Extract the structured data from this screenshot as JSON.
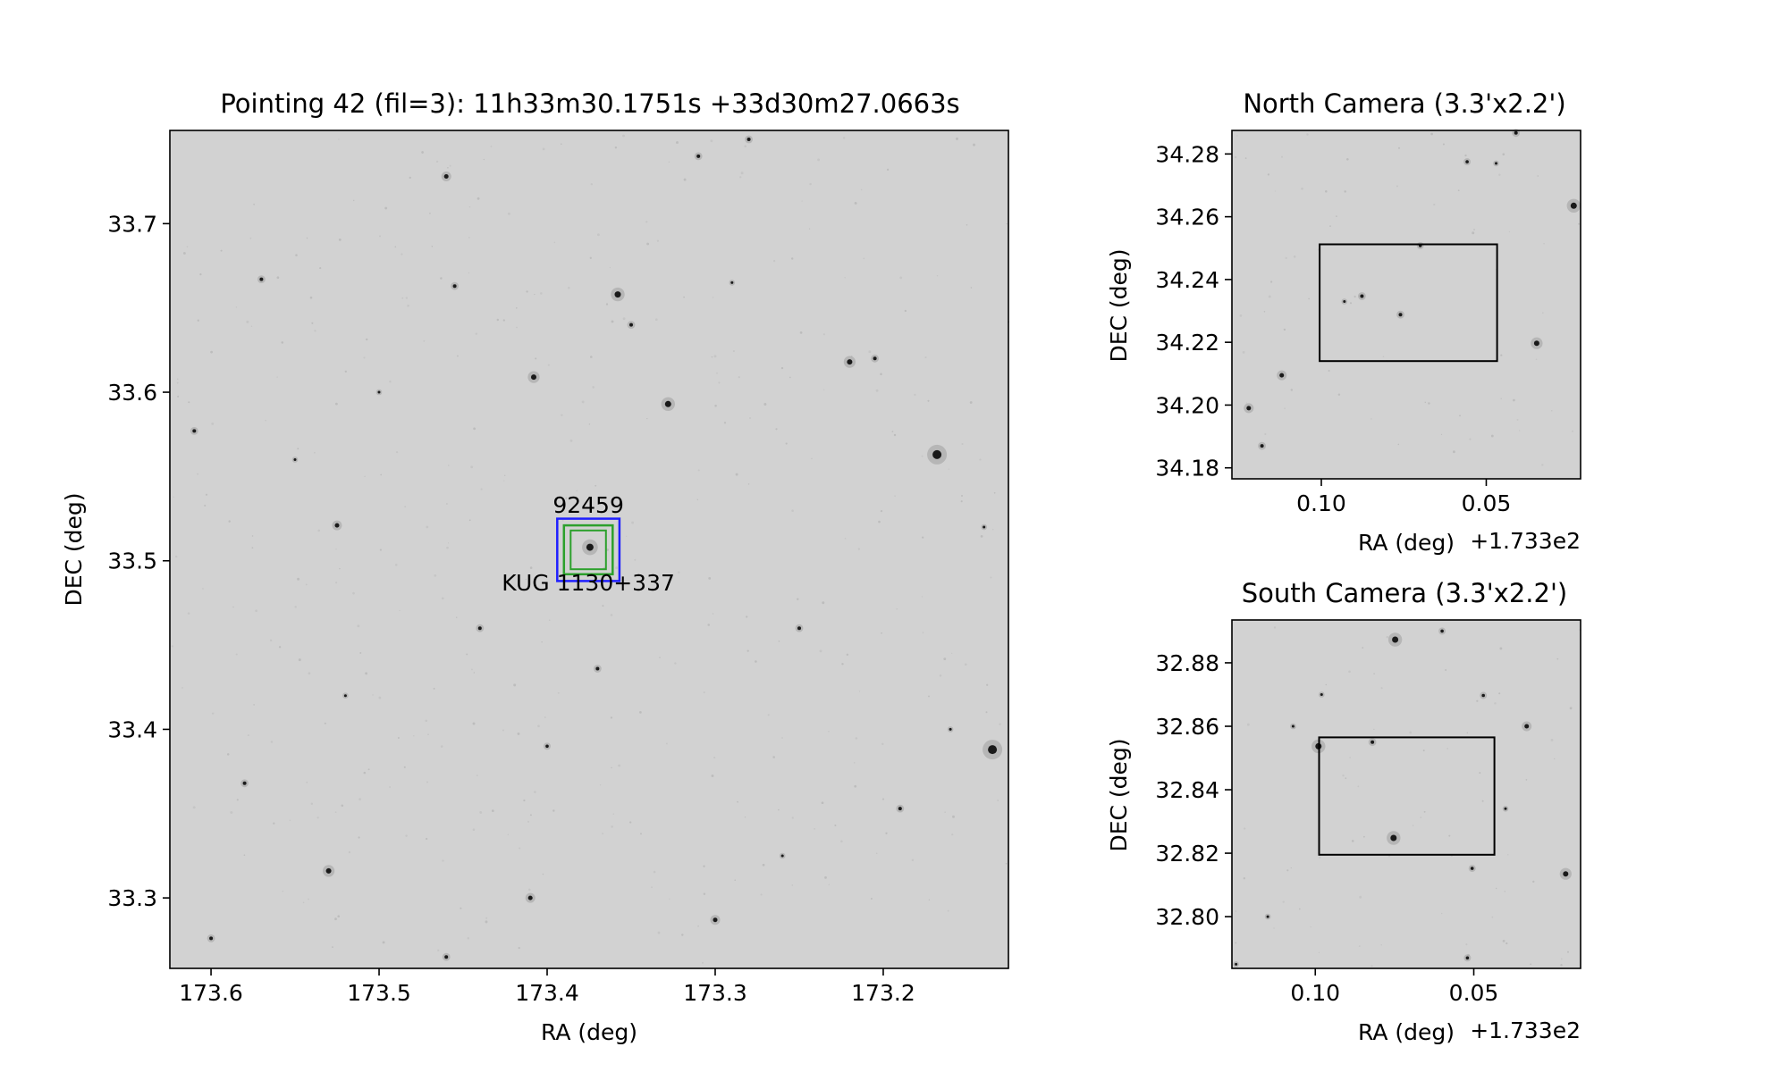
{
  "figure": {
    "background": "#ffffff",
    "image_gray": "#d2d2d2"
  },
  "chart_data": [
    {
      "type": "image",
      "id": "main",
      "title": "Pointing 42 (fil=3): 11h33m30.1751s +33d30m27.0663s",
      "xlabel": "RA (deg)",
      "ylabel": "DEC (deg)",
      "xlim": [
        173.6245,
        173.1255
      ],
      "ylim": [
        33.2582,
        33.7553
      ],
      "xticks": [
        173.6,
        173.5,
        173.4,
        173.3,
        173.2
      ],
      "xtick_labels": [
        "173.6",
        "173.5",
        "173.4",
        "173.3",
        "173.2"
      ],
      "yticks": [
        33.3,
        33.4,
        33.5,
        33.6,
        33.7
      ],
      "ytick_labels": [
        "33.3",
        "33.4",
        "33.5",
        "33.6",
        "33.7"
      ],
      "offset_text": "",
      "rectangles": [
        {
          "x0": 173.394,
          "x1": 173.357,
          "y0": 33.488,
          "y1": 33.525,
          "color": "#1f1fff",
          "width": 2.5
        },
        {
          "x0": 173.39,
          "x1": 173.361,
          "y0": 33.492,
          "y1": 33.521,
          "color": "#2ca02c",
          "width": 2.5
        },
        {
          "x0": 173.386,
          "x1": 173.365,
          "y0": 33.495,
          "y1": 33.518,
          "color": "#2ca02c",
          "width": 2
        }
      ],
      "annotations": [
        {
          "text": "92459",
          "x": 173.3755,
          "y": 33.5285
        },
        {
          "text": "KUG 1130+337",
          "x": 173.3755,
          "y": 33.4825
        }
      ],
      "sources": [
        {
          "x": 173.168,
          "y": 33.563,
          "r": 5
        },
        {
          "x": 173.135,
          "y": 33.388,
          "r": 5
        },
        {
          "x": 173.3745,
          "y": 33.508,
          "r": 4
        },
        {
          "x": 173.358,
          "y": 33.658,
          "r": 3.5
        },
        {
          "x": 173.328,
          "y": 33.593,
          "r": 3.5
        },
        {
          "x": 173.408,
          "y": 33.609,
          "r": 3
        },
        {
          "x": 173.53,
          "y": 33.316,
          "r": 3
        },
        {
          "x": 173.22,
          "y": 33.618,
          "r": 3
        },
        {
          "x": 173.525,
          "y": 33.521,
          "r": 2.5
        },
        {
          "x": 173.46,
          "y": 33.728,
          "r": 2.5
        },
        {
          "x": 173.41,
          "y": 33.3,
          "r": 2.5
        },
        {
          "x": 173.3,
          "y": 33.287,
          "r": 2.5
        },
        {
          "x": 173.61,
          "y": 33.577,
          "r": 2
        },
        {
          "x": 173.455,
          "y": 33.663,
          "r": 2
        },
        {
          "x": 173.58,
          "y": 33.368,
          "r": 2
        },
        {
          "x": 173.25,
          "y": 33.46,
          "r": 2
        },
        {
          "x": 173.35,
          "y": 33.64,
          "r": 2
        },
        {
          "x": 173.37,
          "y": 33.436,
          "r": 2
        },
        {
          "x": 173.46,
          "y": 33.265,
          "r": 2
        },
        {
          "x": 173.205,
          "y": 33.62,
          "r": 2
        },
        {
          "x": 173.19,
          "y": 33.353,
          "r": 2
        },
        {
          "x": 173.6,
          "y": 33.276,
          "r": 2
        },
        {
          "x": 173.57,
          "y": 33.667,
          "r": 2
        },
        {
          "x": 173.28,
          "y": 33.75,
          "r": 2
        },
        {
          "x": 173.4,
          "y": 33.39,
          "r": 1.8
        },
        {
          "x": 173.44,
          "y": 33.46,
          "r": 2
        },
        {
          "x": 173.31,
          "y": 33.74,
          "r": 2
        },
        {
          "x": 173.29,
          "y": 33.665,
          "r": 1.5
        },
        {
          "x": 173.5,
          "y": 33.6,
          "r": 1.5
        },
        {
          "x": 173.14,
          "y": 33.52,
          "r": 1.5
        },
        {
          "x": 173.16,
          "y": 33.4,
          "r": 1.5
        },
        {
          "x": 173.26,
          "y": 33.325,
          "r": 1.5
        },
        {
          "x": 173.55,
          "y": 33.56,
          "r": 1.5
        },
        {
          "x": 173.52,
          "y": 33.42,
          "r": 1.5
        }
      ]
    },
    {
      "type": "image",
      "id": "north",
      "title": "North Camera (3.3'x2.2')",
      "xlabel": "RA (deg)",
      "ylabel": "DEC (deg)",
      "xlim": [
        0.1271,
        0.0214
      ],
      "ylim": [
        34.1765,
        34.2875
      ],
      "xticks": [
        0.1,
        0.05
      ],
      "xtick_labels": [
        "0.10",
        "0.05"
      ],
      "yticks": [
        34.18,
        34.2,
        34.22,
        34.24,
        34.26,
        34.28
      ],
      "ytick_labels": [
        "34.18",
        "34.20",
        "34.22",
        "34.24",
        "34.26",
        "34.28"
      ],
      "offset_text": "+1.733e2",
      "rectangles": [
        {
          "x0": 0.1005,
          "x1": 0.0467,
          "y0": 34.214,
          "y1": 34.2512,
          "color": "#000000",
          "width": 2
        }
      ],
      "annotations": [],
      "sources": [
        {
          "x": 0.0347,
          "y": 34.2197,
          "r": 3
        },
        {
          "x": 0.0235,
          "y": 34.2635,
          "r": 3.5
        },
        {
          "x": 0.112,
          "y": 34.2095,
          "r": 2.5
        },
        {
          "x": 0.122,
          "y": 34.199,
          "r": 2.5
        },
        {
          "x": 0.0877,
          "y": 34.2347,
          "r": 2
        },
        {
          "x": 0.076,
          "y": 34.2288,
          "r": 2
        },
        {
          "x": 0.118,
          "y": 34.187,
          "r": 2
        },
        {
          "x": 0.041,
          "y": 34.2867,
          "r": 2
        },
        {
          "x": 0.0558,
          "y": 34.2775,
          "r": 1.8
        },
        {
          "x": 0.07,
          "y": 34.2508,
          "r": 1.8
        },
        {
          "x": 0.093,
          "y": 34.233,
          "r": 1.5
        },
        {
          "x": 0.047,
          "y": 34.277,
          "r": 1.5
        }
      ]
    },
    {
      "type": "image",
      "id": "south",
      "title": "South Camera (3.3'x2.2')",
      "xlabel": "RA (deg)",
      "ylabel": "DEC (deg)",
      "xlim": [
        0.1263,
        0.0163
      ],
      "ylim": [
        32.7837,
        32.8935
      ],
      "xticks": [
        0.1,
        0.05
      ],
      "xtick_labels": [
        "0.10",
        "0.05"
      ],
      "yticks": [
        32.8,
        32.82,
        32.84,
        32.86,
        32.88
      ],
      "ytick_labels": [
        "32.80",
        "32.82",
        "32.84",
        "32.86",
        "32.88"
      ],
      "offset_text": "+1.733e2",
      "rectangles": [
        {
          "x0": 0.0988,
          "x1": 0.0435,
          "y0": 32.8195,
          "y1": 32.8565,
          "color": "#000000",
          "width": 2
        }
      ],
      "annotations": [],
      "sources": [
        {
          "x": 0.0748,
          "y": 32.8873,
          "r": 3.5
        },
        {
          "x": 0.0753,
          "y": 32.8248,
          "r": 3.5
        },
        {
          "x": 0.099,
          "y": 32.8537,
          "r": 3.5
        },
        {
          "x": 0.021,
          "y": 32.8135,
          "r": 3
        },
        {
          "x": 0.0333,
          "y": 32.86,
          "r": 2.5
        },
        {
          "x": 0.082,
          "y": 32.855,
          "r": 2
        },
        {
          "x": 0.06,
          "y": 32.89,
          "r": 1.8
        },
        {
          "x": 0.0505,
          "y": 32.8152,
          "r": 1.8
        },
        {
          "x": 0.047,
          "y": 32.8697,
          "r": 1.8
        },
        {
          "x": 0.098,
          "y": 32.87,
          "r": 1.5
        },
        {
          "x": 0.107,
          "y": 32.86,
          "r": 1.5
        },
        {
          "x": 0.052,
          "y": 32.787,
          "r": 1.8
        },
        {
          "x": 0.125,
          "y": 32.785,
          "r": 1.5
        },
        {
          "x": 0.115,
          "y": 32.8,
          "r": 1.5
        },
        {
          "x": 0.04,
          "y": 32.834,
          "r": 1.5
        }
      ]
    }
  ]
}
